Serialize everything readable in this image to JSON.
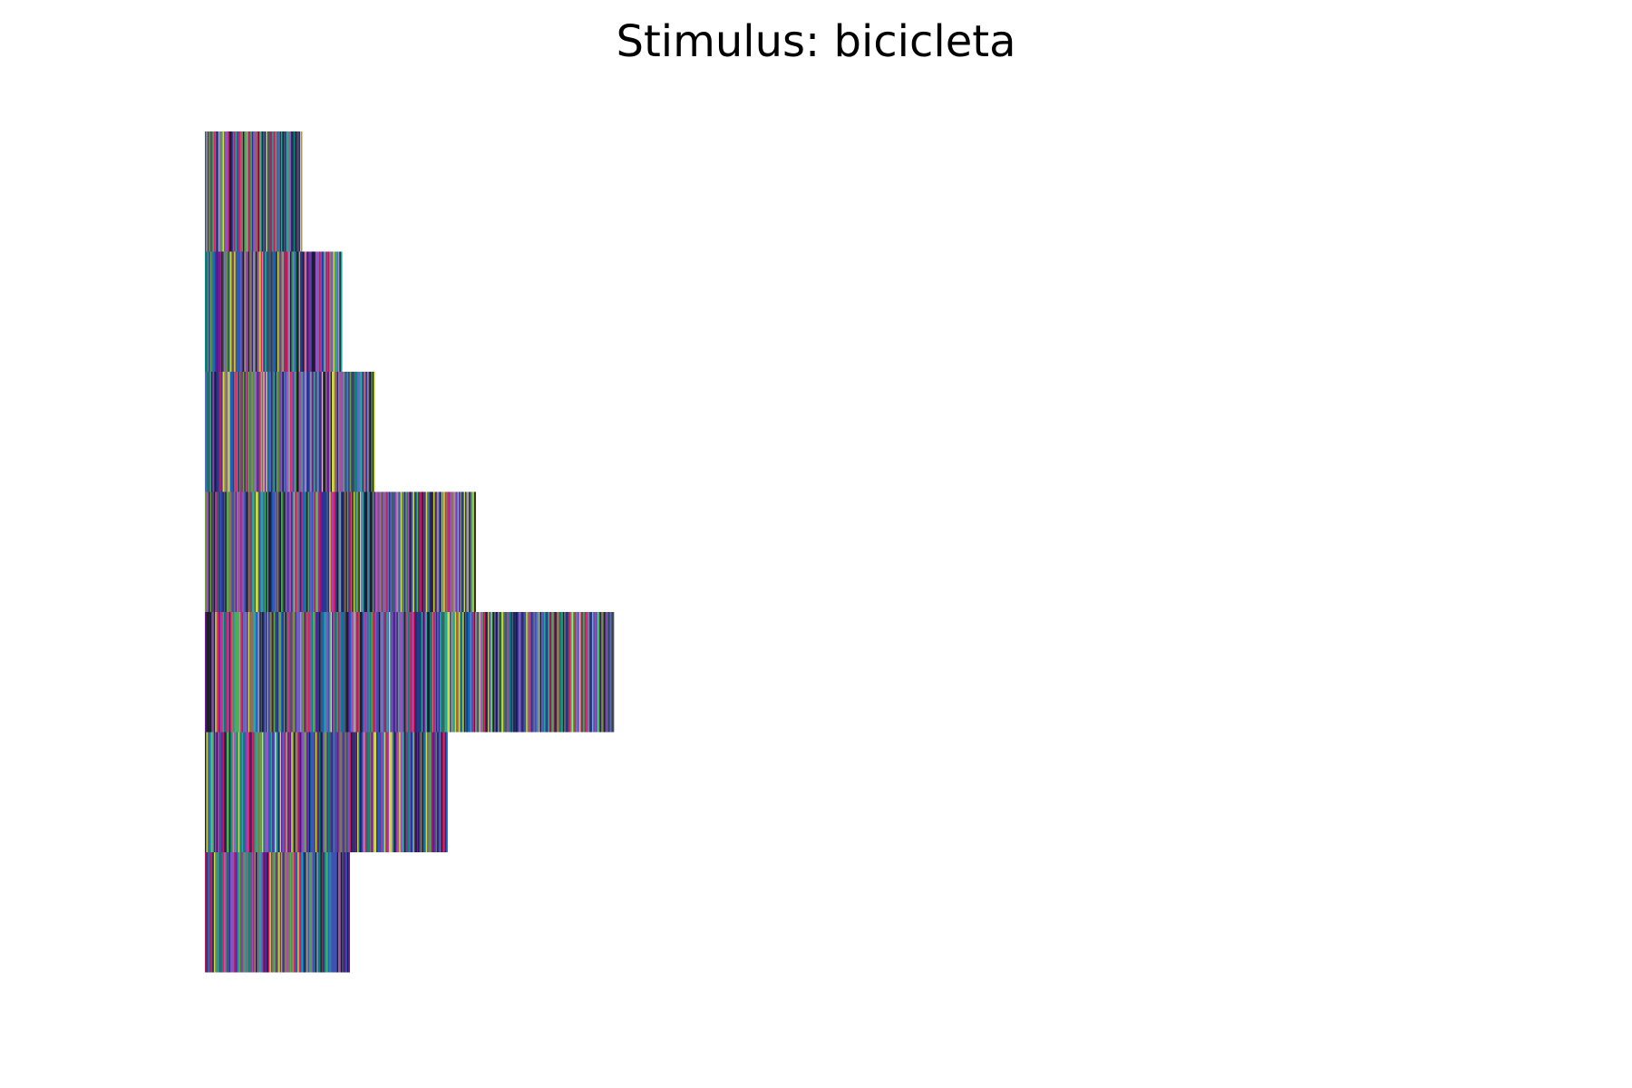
{
  "chart_data": {
    "type": "heatmap",
    "title": "Stimulus: bicicleta",
    "xlabel": "",
    "ylabel": "",
    "axes_visible": false,
    "grid": false,
    "rows": [
      {
        "row": 1,
        "length": 190
      },
      {
        "row": 2,
        "length": 268
      },
      {
        "row": 3,
        "length": 332
      },
      {
        "row": 4,
        "length": 529
      },
      {
        "row": 5,
        "length": 800
      },
      {
        "row": 6,
        "length": 474
      },
      {
        "row": 7,
        "length": 283
      }
    ],
    "x_range": [
      0,
      1400
    ],
    "palette": [
      "#2d2a6e",
      "#3f51b5",
      "#1b1a3a",
      "#4caf50",
      "#7e57c2",
      "#26a69a",
      "#9e9e9e",
      "#c2185b",
      "#8d6e63",
      "#283593",
      "#00897b",
      "#cddc39",
      "#6a1b9a",
      "#455a64",
      "#5c6bc0",
      "#ab47bc",
      "#212121",
      "#e91e63",
      "#1565c0",
      "#689f38"
    ]
  }
}
